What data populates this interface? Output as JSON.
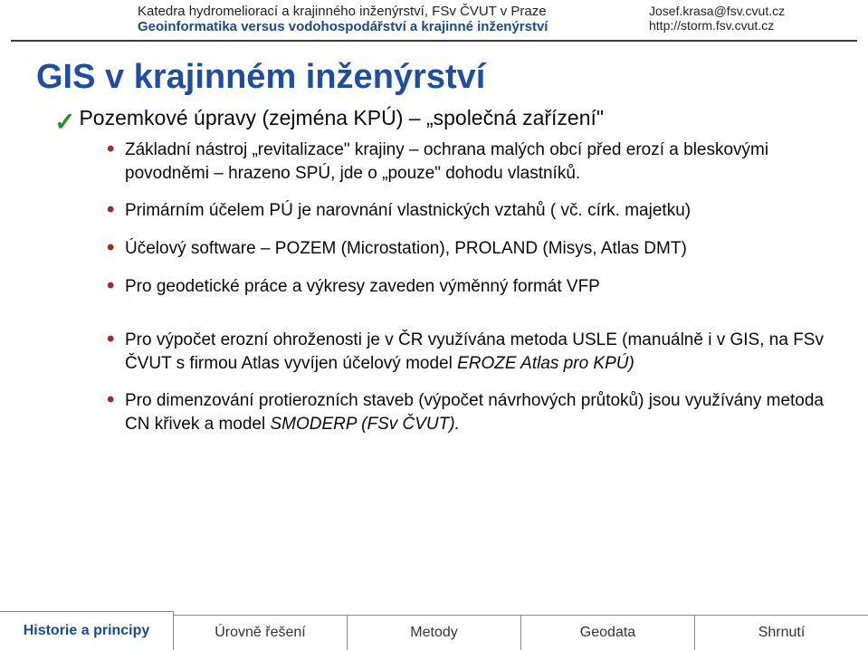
{
  "header": {
    "left_line1": "Katedra hydromeliorací a krajinného inženýrství, FSv ČVUT v Praze",
    "left_line2": "Geoinformatika versus vodohospodářství a krajinné inženýrství",
    "right_line1": "Josef.krasa@fsv.cvut.cz",
    "right_line2": "http://storm.fsv.cvut.cz"
  },
  "title": "GIS v krajinném inženýrství",
  "check": {
    "text": "Pozemkové úpravy (zejména KPÚ) – „společná zařízení\""
  },
  "bullets_a": [
    "Základní nástroj „revitalizace\" krajiny – ochrana malých obcí před erozí a bleskovými povodněmi – hrazeno SPÚ, jde o „pouze\" dohodu vlastníků.",
    "Primárním účelem PÚ je narovnání vlastnických vztahů ( vč. círk. majetku)",
    "Účelový software – POZEM (Microstation), PROLAND (Misys, Atlas DMT)",
    "Pro geodetické práce a výkresy zaveden výměnný formát VFP"
  ],
  "bullets_b": [
    {
      "text": "Pro výpočet erozní ohroženosti je v ČR využívána metoda USLE (manuálně i v GIS, na FSv ČVUT s firmou Atlas vyvíjen účelový model ",
      "italic_tail": "EROZE Atlas pro KPÚ)"
    },
    {
      "text": "Pro dimenzování protierozních staveb (výpočet návrhových průtoků) jsou využívány metoda CN křivek a model ",
      "italic_tail": "SMODERP (FSv ČVUT)."
    }
  ],
  "footer": {
    "items": [
      {
        "label": "Historie a principy",
        "active": true
      },
      {
        "label": "Úrovně řešení",
        "active": false
      },
      {
        "label": "Metody",
        "active": false
      },
      {
        "label": "Geodata",
        "active": false
      },
      {
        "label": "Shrnutí",
        "active": false
      }
    ]
  },
  "colors": {
    "title": "#1f4e9c",
    "subtitle": "#1a4a8a",
    "bullet_marker": "#9c2d2d",
    "check": "#2e8b2e",
    "rule": "#3a3a3a",
    "background": "#ffffff"
  }
}
